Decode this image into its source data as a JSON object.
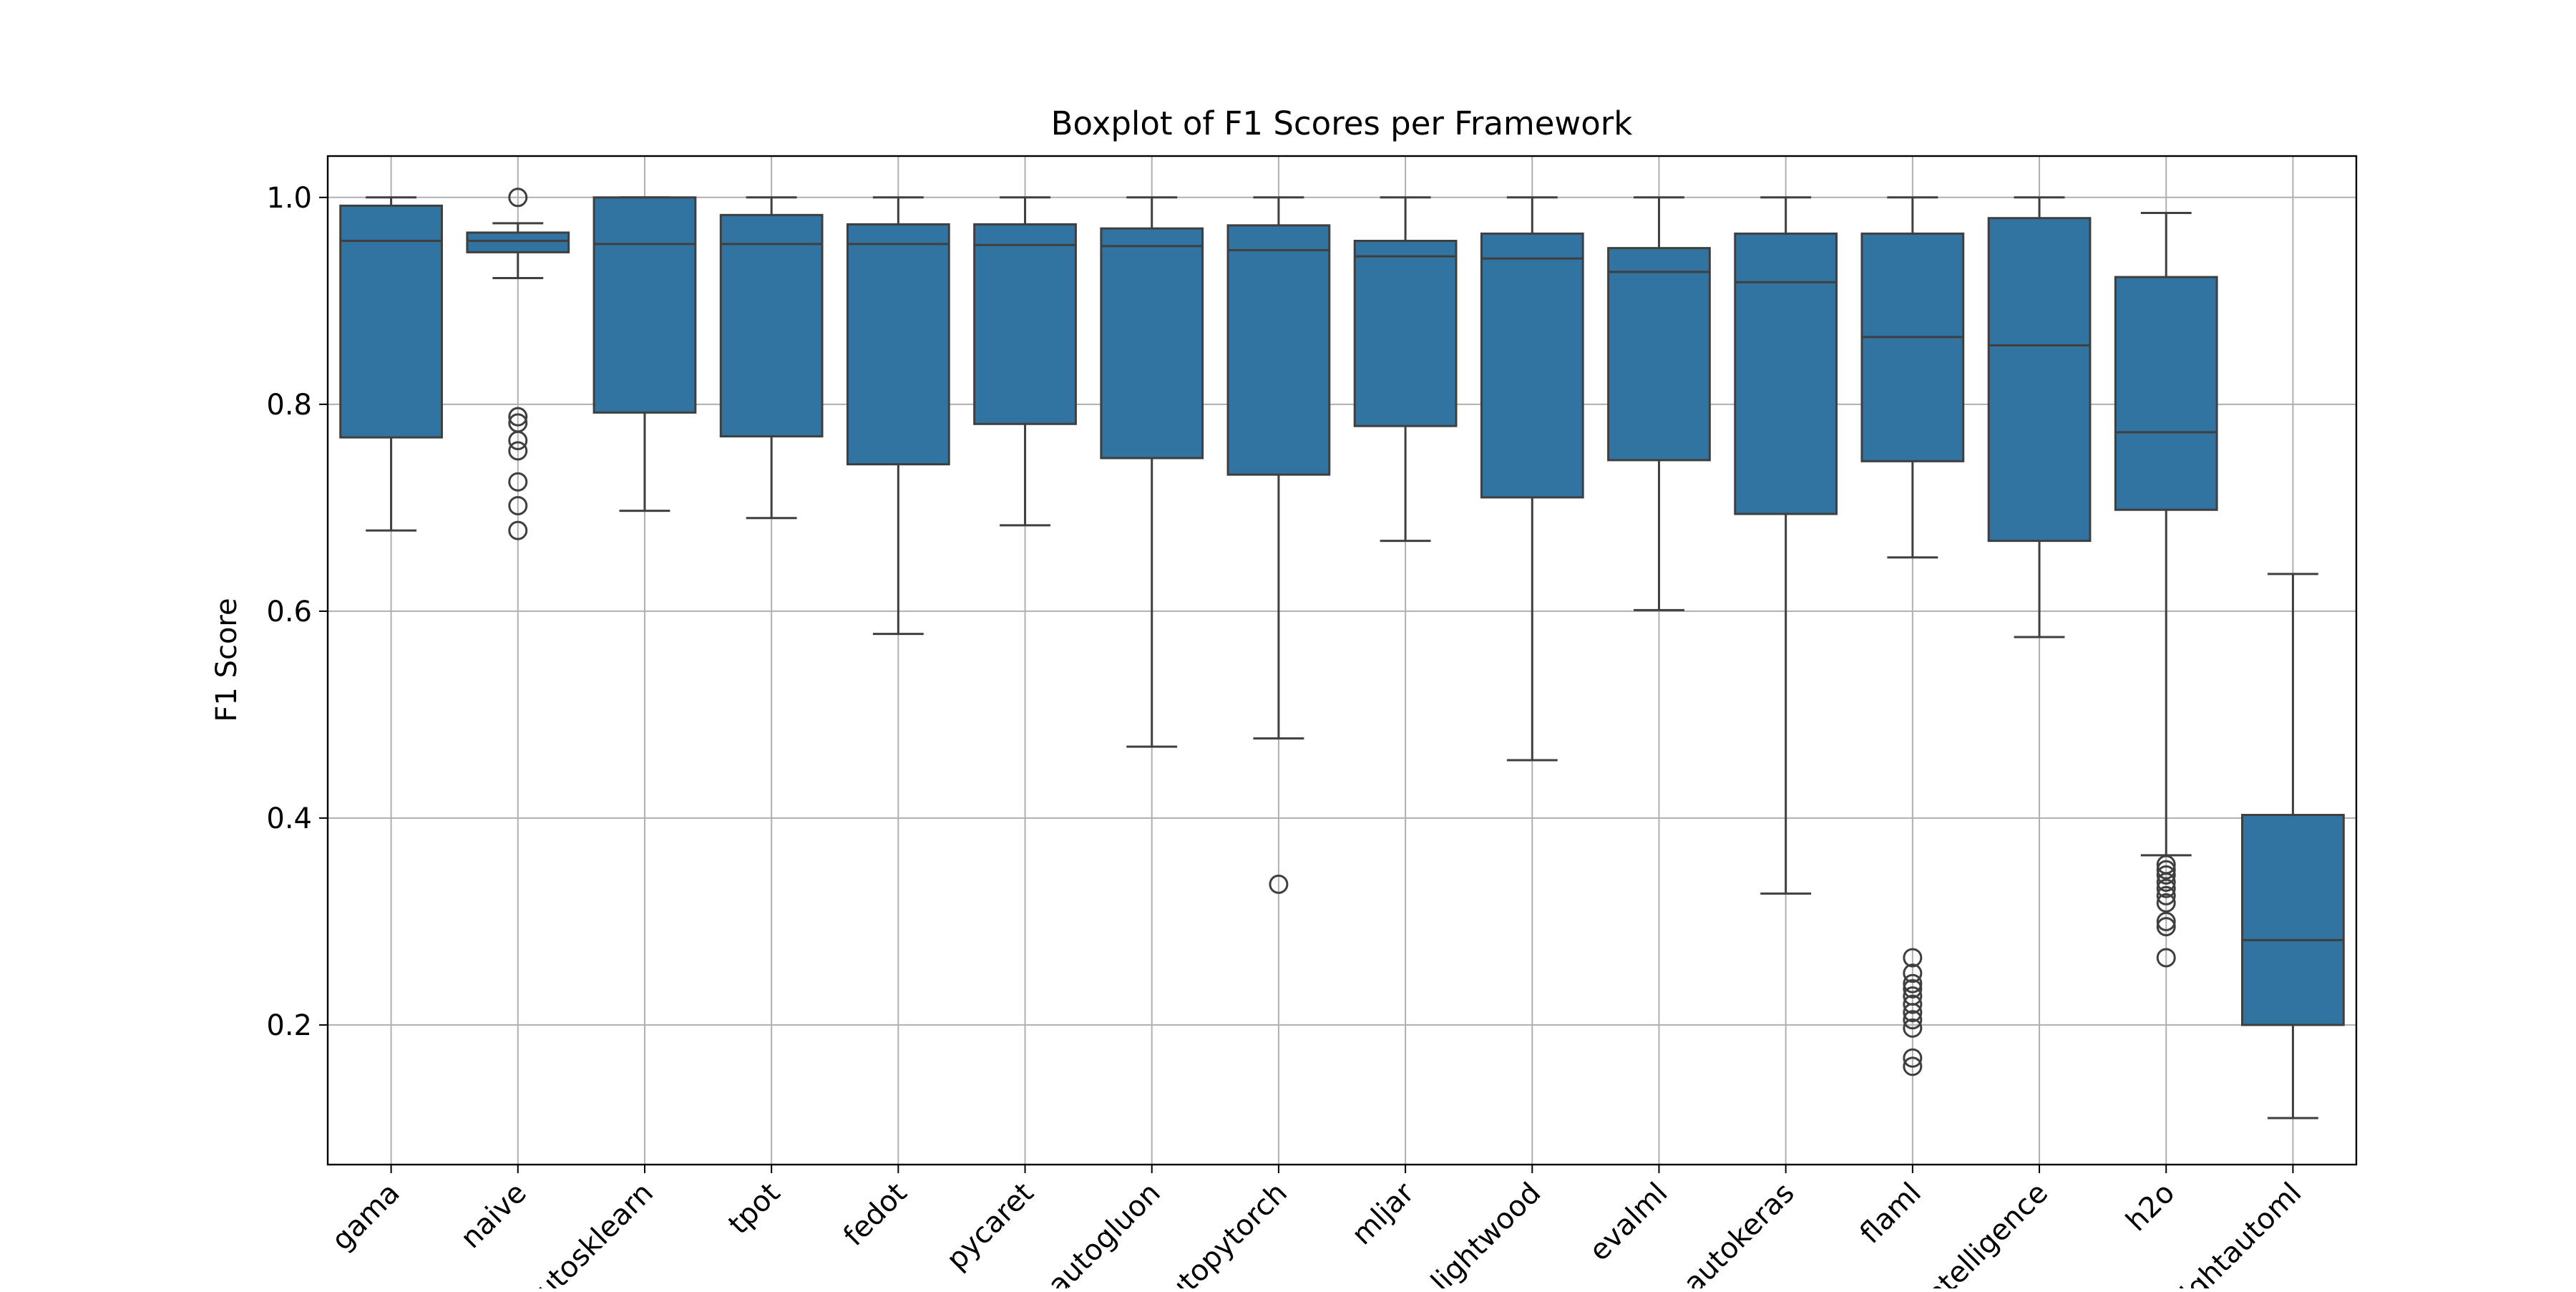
{
  "chart_data": {
    "type": "box",
    "title": "Boxplot of F1 Scores per Framework",
    "xlabel": "",
    "ylabel": "F1 Score",
    "ylim": [
      0.065,
      1.04
    ],
    "yticks": [
      0.2,
      0.4,
      0.6,
      0.8,
      1.0
    ],
    "ytick_labels": [
      "0.2",
      "0.4",
      "0.6",
      "0.8",
      "1.0"
    ],
    "grid": true,
    "box_color": "#3274a1",
    "line_color": "#3f3f3f",
    "grid_color": "#b0b0b0",
    "categories": [
      "gama",
      "naive",
      "autosklearn",
      "tpot",
      "fedot",
      "pycaret",
      "autogluon",
      "autopytorch",
      "mljar",
      "lightwood",
      "evalml",
      "autokeras",
      "flaml",
      "intelligence",
      "h2o",
      "lightautoml"
    ],
    "boxes": [
      {
        "label": "gama",
        "whisker_low": 0.678,
        "q1": 0.768,
        "median": 0.958,
        "q3": 0.992,
        "whisker_high": 1.0,
        "outliers": []
      },
      {
        "label": "naive",
        "whisker_low": 0.922,
        "q1": 0.947,
        "median": 0.958,
        "q3": 0.966,
        "whisker_high": 0.975,
        "outliers": [
          1.0,
          0.788,
          0.782,
          0.765,
          0.755,
          0.725,
          0.702,
          0.678
        ]
      },
      {
        "label": "autosklearn",
        "whisker_low": 0.697,
        "q1": 0.792,
        "median": 0.955,
        "q3": 1.0,
        "whisker_high": 1.0,
        "outliers": []
      },
      {
        "label": "tpot",
        "whisker_low": 0.69,
        "q1": 0.769,
        "median": 0.955,
        "q3": 0.983,
        "whisker_high": 1.0,
        "outliers": []
      },
      {
        "label": "fedot",
        "whisker_low": 0.578,
        "q1": 0.742,
        "median": 0.955,
        "q3": 0.974,
        "whisker_high": 1.0,
        "outliers": []
      },
      {
        "label": "pycaret",
        "whisker_low": 0.683,
        "q1": 0.781,
        "median": 0.954,
        "q3": 0.974,
        "whisker_high": 1.0,
        "outliers": []
      },
      {
        "label": "autogluon",
        "whisker_low": 0.469,
        "q1": 0.748,
        "median": 0.953,
        "q3": 0.97,
        "whisker_high": 1.0,
        "outliers": []
      },
      {
        "label": "autopytorch",
        "whisker_low": 0.477,
        "q1": 0.732,
        "median": 0.949,
        "q3": 0.973,
        "whisker_high": 1.0,
        "outliers": [
          0.336
        ]
      },
      {
        "label": "mljar",
        "whisker_low": 0.668,
        "q1": 0.779,
        "median": 0.943,
        "q3": 0.958,
        "whisker_high": 1.0,
        "outliers": []
      },
      {
        "label": "lightwood",
        "whisker_low": 0.456,
        "q1": 0.71,
        "median": 0.941,
        "q3": 0.965,
        "whisker_high": 1.0,
        "outliers": []
      },
      {
        "label": "evalml",
        "whisker_low": 0.601,
        "q1": 0.746,
        "median": 0.928,
        "q3": 0.951,
        "whisker_high": 1.0,
        "outliers": []
      },
      {
        "label": "autokeras",
        "whisker_low": 0.327,
        "q1": 0.694,
        "median": 0.918,
        "q3": 0.965,
        "whisker_high": 1.0,
        "outliers": []
      },
      {
        "label": "flaml",
        "whisker_low": 0.652,
        "q1": 0.745,
        "median": 0.865,
        "q3": 0.965,
        "whisker_high": 1.0,
        "outliers": [
          0.265,
          0.25,
          0.24,
          0.235,
          0.228,
          0.22,
          0.212,
          0.205,
          0.197,
          0.168,
          0.16
        ]
      },
      {
        "label": "intelligence",
        "whisker_low": 0.575,
        "q1": 0.668,
        "median": 0.857,
        "q3": 0.98,
        "whisker_high": 1.0,
        "outliers": []
      },
      {
        "label": "h2o",
        "whisker_low": 0.364,
        "q1": 0.698,
        "median": 0.773,
        "q3": 0.923,
        "whisker_high": 0.985,
        "outliers": [
          0.355,
          0.35,
          0.345,
          0.338,
          0.332,
          0.325,
          0.318,
          0.3,
          0.295,
          0.265
        ]
      },
      {
        "label": "lightautoml",
        "whisker_low": 0.11,
        "q1": 0.2,
        "median": 0.282,
        "q3": 0.403,
        "whisker_high": 0.636,
        "outliers": []
      }
    ]
  }
}
